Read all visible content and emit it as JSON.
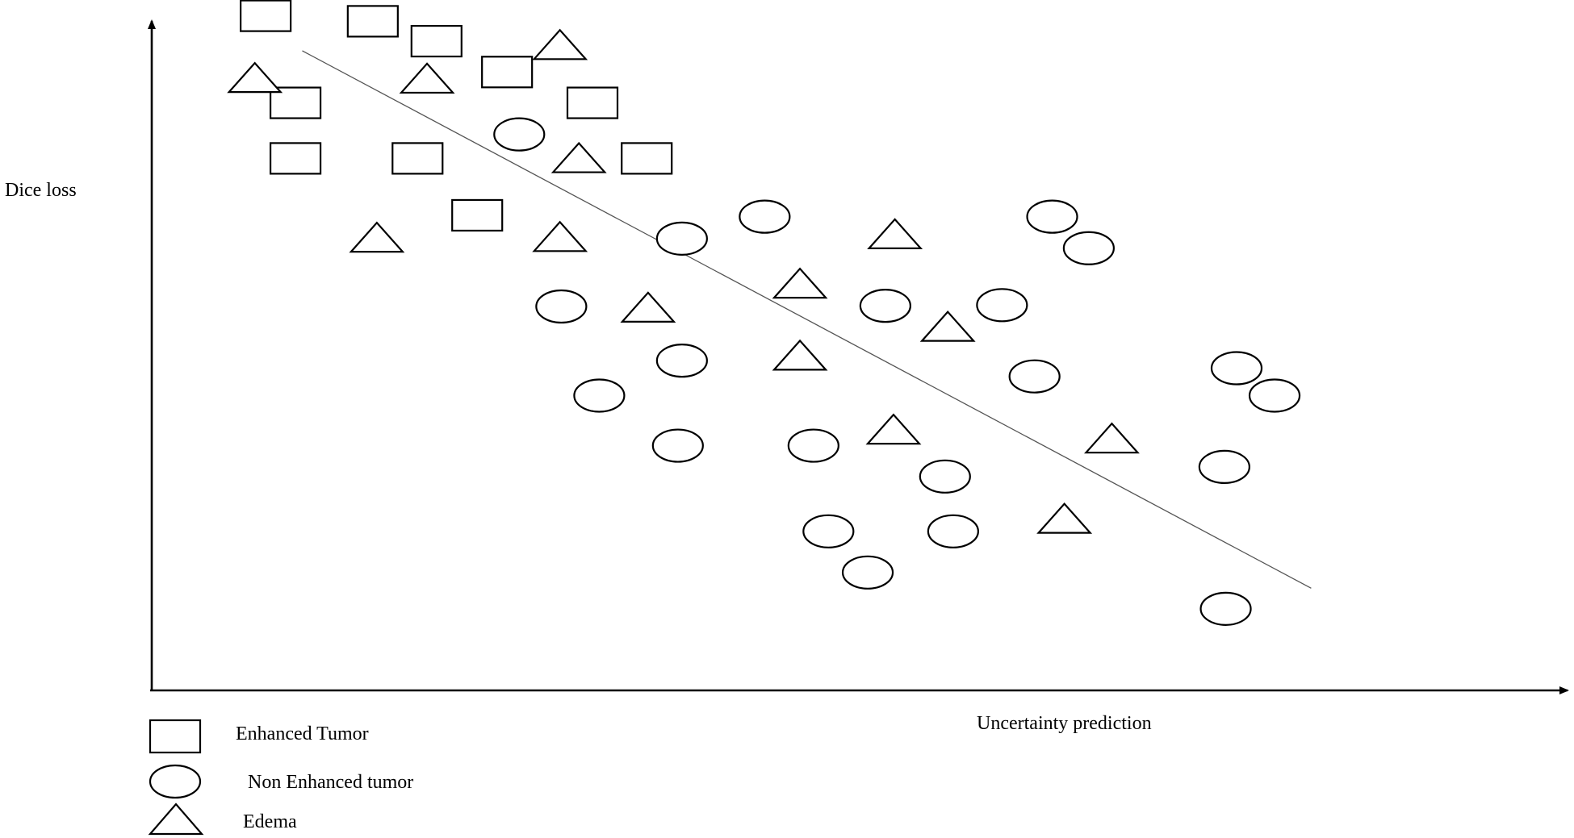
{
  "chart_data": {
    "type": "scatter",
    "title": "",
    "xlabel": "Uncertainty prediction",
    "ylabel": "Dice loss",
    "grid": false,
    "legend_placement": "bottom-left",
    "xlim": [
      0,
      100
    ],
    "ylim": [
      0,
      100
    ],
    "series": [
      {
        "name": "Enhanced Tumor",
        "marker": "square",
        "points": [
          [
            8.4,
            98.4
          ],
          [
            16.3,
            97.6
          ],
          [
            21.0,
            94.7
          ],
          [
            26.2,
            90.2
          ],
          [
            10.6,
            85.7
          ],
          [
            32.5,
            85.7
          ],
          [
            10.6,
            77.6
          ],
          [
            19.6,
            77.6
          ],
          [
            36.5,
            77.6
          ],
          [
            24.0,
            69.3
          ]
        ]
      },
      {
        "name": "Non Enhanced tumor",
        "marker": "circle",
        "points": [
          [
            27.1,
            81.1
          ],
          [
            39.1,
            65.9
          ],
          [
            45.2,
            69.1
          ],
          [
            66.4,
            69.1
          ],
          [
            30.2,
            56.0
          ],
          [
            54.1,
            56.1
          ],
          [
            62.7,
            56.2
          ],
          [
            39.1,
            48.1
          ],
          [
            69.1,
            64.5
          ],
          [
            33.0,
            43.0
          ],
          [
            65.1,
            45.8
          ],
          [
            82.8,
            43.0
          ],
          [
            80.0,
            47.0
          ],
          [
            38.8,
            35.7
          ],
          [
            48.8,
            35.7
          ],
          [
            79.1,
            32.6
          ],
          [
            58.5,
            31.2
          ],
          [
            49.9,
            23.2
          ],
          [
            59.1,
            23.2
          ],
          [
            52.8,
            17.2
          ],
          [
            79.2,
            11.9
          ]
        ]
      },
      {
        "name": "Edema",
        "marker": "triangle",
        "points": [
          [
            7.6,
            89.4
          ],
          [
            20.3,
            89.3
          ],
          [
            30.1,
            94.2
          ],
          [
            31.5,
            77.7
          ],
          [
            16.6,
            66.1
          ],
          [
            30.1,
            66.2
          ],
          [
            36.6,
            55.9
          ],
          [
            47.8,
            59.4
          ],
          [
            54.8,
            66.6
          ],
          [
            58.7,
            53.1
          ],
          [
            47.8,
            48.9
          ],
          [
            54.7,
            38.1
          ],
          [
            70.8,
            36.8
          ],
          [
            67.3,
            25.1
          ]
        ]
      }
    ],
    "trend_line": {
      "from": [
        11.1,
        93.3
      ],
      "to": [
        85.5,
        14.9
      ]
    },
    "colors": {
      "marks": "#000000",
      "fill": "#ffffff",
      "trend": "#555555"
    }
  }
}
